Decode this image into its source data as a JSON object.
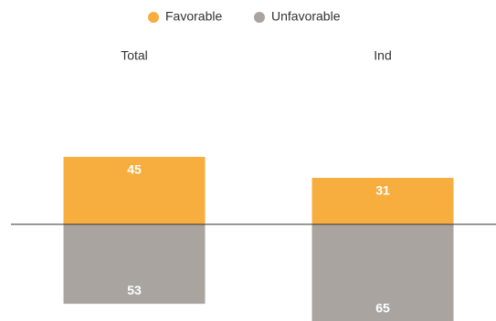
{
  "chart_data": {
    "type": "diverging",
    "categories": [
      "Total",
      "Ind"
    ],
    "series": [
      {
        "name": "Favorable",
        "color": "#f7ae3f",
        "values": [
          45,
          31
        ]
      },
      {
        "name": "Unfavorable",
        "color": "#a9a49f",
        "values": [
          53,
          65
        ]
      }
    ]
  }
}
